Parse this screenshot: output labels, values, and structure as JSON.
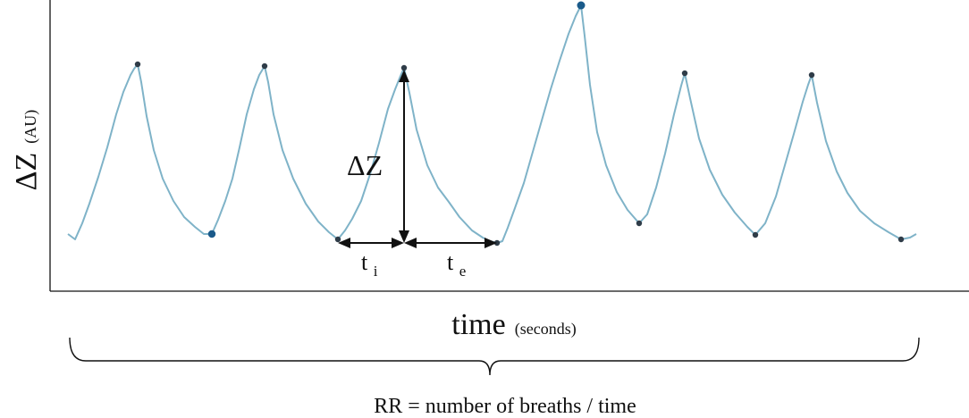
{
  "labels": {
    "y_main": "ΔZ",
    "y_unit": "(AU)",
    "x_main": "time",
    "x_unit": "(seconds)",
    "amplitude": "ΔZ",
    "ti_base": "t",
    "ti_sub": "i",
    "te_base": "t",
    "te_sub": "e",
    "formula": "RR = number of breaths / time"
  },
  "colors": {
    "trace": "#7fb3c8",
    "marker": "#2f3c48",
    "highlight_marker": "#1a5a8a",
    "axis": "#111111",
    "arrow": "#111111"
  }
}
